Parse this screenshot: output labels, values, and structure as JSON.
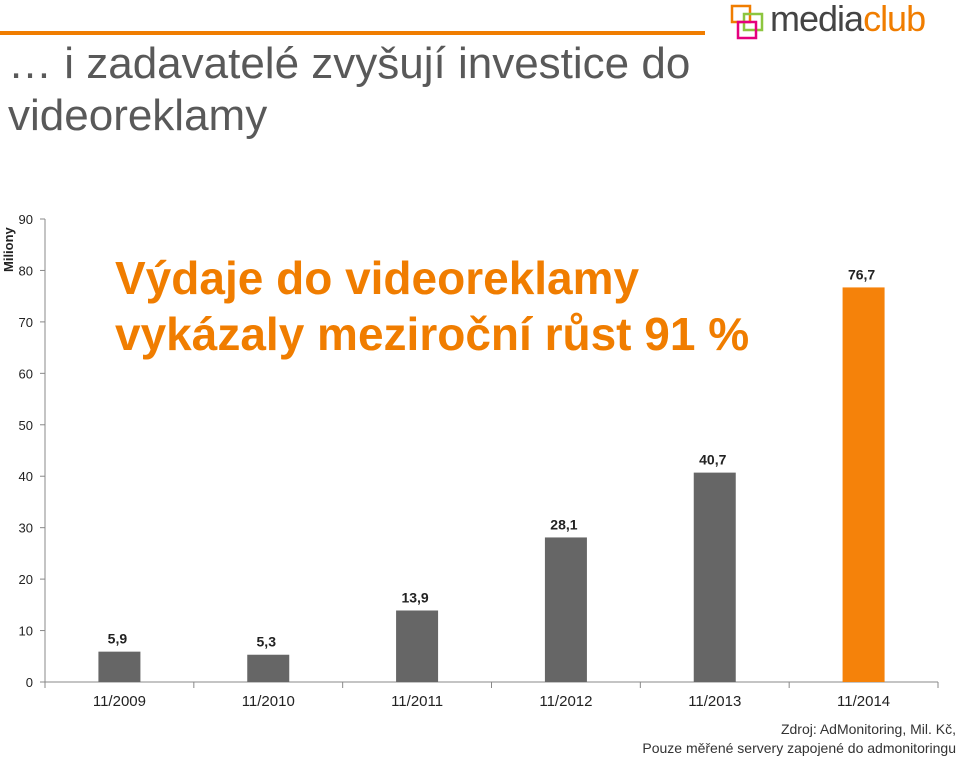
{
  "header": {
    "title": "… i zadavatelé zvyšují investice do videoreklamy"
  },
  "logo": {
    "text_main": "media",
    "text_accent": "club",
    "icon": "overlapping-squares-icon",
    "colors": [
      "#f07d00",
      "#8dc63f",
      "#e5007e"
    ]
  },
  "callout": {
    "text": "Výdaje do videoreklamy vykázaly meziroční růst 91 %"
  },
  "source": {
    "line1": "Zdroj: AdMonitoring, Mil. Kč,",
    "line2": "Pouze měřené servery zapojené do admonitoringu"
  },
  "colors": {
    "bar_default": "#666666",
    "bar_highlight": "#f5820a",
    "accent": "#f07d00"
  },
  "chart_data": {
    "type": "bar",
    "ylabel": "Miliony",
    "xlabel": "",
    "title": "",
    "ylim": [
      0,
      90
    ],
    "yticks": [
      0,
      10,
      20,
      30,
      40,
      50,
      60,
      70,
      80,
      90
    ],
    "grid": false,
    "categories": [
      "11/2009",
      "11/2010",
      "11/2011",
      "11/2012",
      "11/2013",
      "11/2014"
    ],
    "values": [
      5.9,
      5.3,
      13.9,
      28.1,
      40.7,
      76.7
    ],
    "value_labels": [
      "5,9",
      "5,3",
      "13,9",
      "28,1",
      "40,7",
      "76,7"
    ],
    "highlight_index": 5
  }
}
